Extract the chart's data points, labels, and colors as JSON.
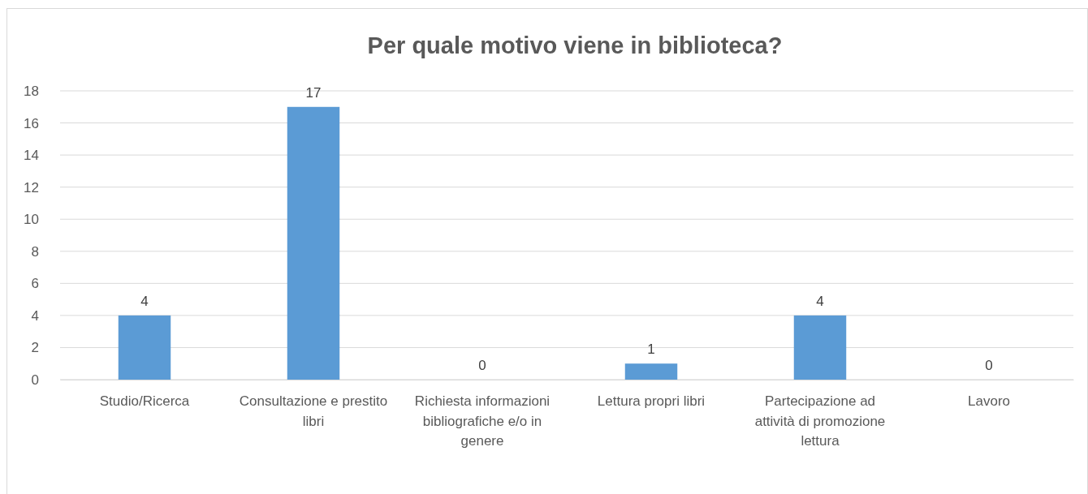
{
  "chart_data": {
    "type": "bar",
    "title": "Per quale motivo viene in biblioteca?",
    "categories": [
      "Studio/Ricerca",
      "Consultazione e prestito libri",
      "Richiesta informazioni bibliografiche e/o in genere",
      "Lettura propri libri",
      "Partecipazione ad attività di promozione lettura",
      "Lavoro"
    ],
    "values": [
      4,
      17,
      0,
      1,
      4,
      0
    ],
    "color": "#5b9bd5",
    "ylim": [
      0,
      18
    ],
    "yticks": [
      0,
      2,
      4,
      6,
      8,
      10,
      12,
      14,
      16,
      18
    ],
    "grid": "y",
    "data_labels": true
  }
}
